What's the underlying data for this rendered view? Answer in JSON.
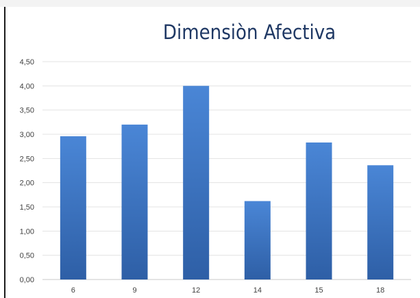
{
  "chart_data": {
    "type": "bar",
    "title": "Dimensiòn Afectiva",
    "categories": [
      "6",
      "9",
      "12",
      "14",
      "15",
      "18"
    ],
    "values": [
      2.96,
      3.2,
      4.0,
      1.62,
      2.83,
      2.36
    ],
    "ylim": [
      0,
      4.5
    ],
    "y_ticks": [
      "0,00",
      "0,50",
      "1,00",
      "1,50",
      "2,00",
      "2,50",
      "3,00",
      "3,50",
      "4,00",
      "4,50"
    ],
    "y_tick_values": [
      0,
      0.5,
      1.0,
      1.5,
      2.0,
      2.5,
      3.0,
      3.5,
      4.0,
      4.5
    ],
    "grid": true,
    "bar_color_top": "#4a86d6",
    "bar_color_bottom": "#2e5fa6",
    "gridline_color": "#e3e3e3"
  }
}
